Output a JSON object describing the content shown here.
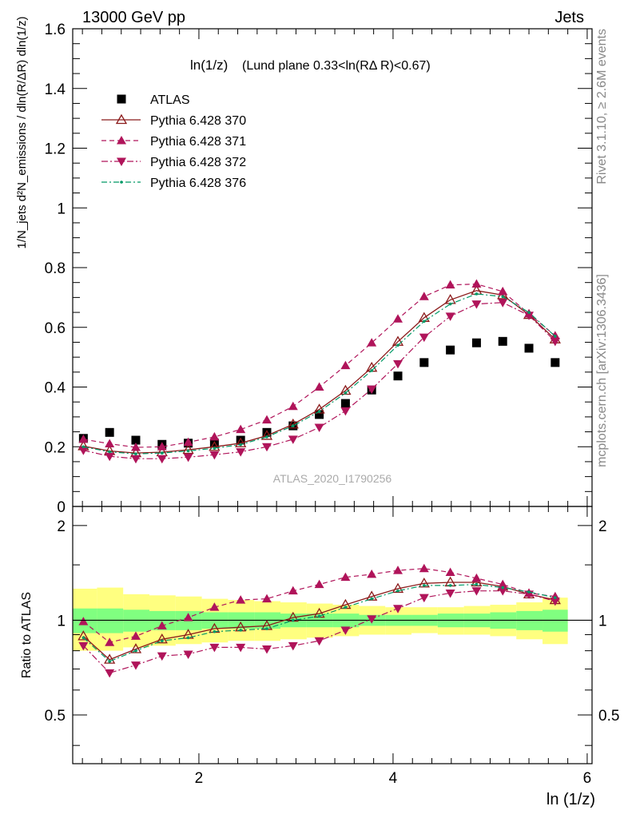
{
  "header": {
    "energy_label": "13000 GeV pp",
    "category_label": "Jets",
    "side_label_top": "Rivet 3.1.10, ≥ 2.6M events",
    "side_label_bottom": "mcplots.cern.ch [arXiv:1306.3436]",
    "watermark": "ATLAS_2020_I1790256"
  },
  "chart_data": [
    {
      "type": "scatter",
      "panel": "main",
      "title_part1": "ln(1/z)",
      "title_part2": "(Lund plane 0.33<ln(RΔ R)<0.67)",
      "xlabel": "ln (1/z)",
      "ylabel": "1/N_jets d²N_emissions / dln(R/ΔR) dln(1/z)",
      "xlim": [
        0.7,
        6.05
      ],
      "ylim": [
        0,
        1.6
      ],
      "yticks": [
        0,
        0.2,
        0.4,
        0.6,
        0.8,
        1,
        1.2,
        1.4,
        1.6
      ],
      "ytick_labels": [
        "0",
        "0.2",
        "0.4",
        "0.6",
        "0.8",
        "1",
        "1.2",
        "1.4",
        "1.6"
      ],
      "xticks": [
        2,
        4,
        6
      ],
      "xtick_labels": [
        "2",
        "4",
        "6"
      ],
      "legend_position": "top-left",
      "x": [
        0.81,
        1.08,
        1.35,
        1.62,
        1.89,
        2.16,
        2.43,
        2.7,
        2.97,
        3.24,
        3.51,
        3.78,
        4.05,
        4.32,
        4.59,
        4.86,
        5.13,
        5.4,
        5.67
      ],
      "series": [
        {
          "name": "ATLAS",
          "style": "square",
          "color": "#000000",
          "values": [
            0.228,
            0.248,
            0.222,
            0.208,
            0.212,
            0.212,
            0.222,
            0.248,
            0.27,
            0.308,
            0.345,
            0.39,
            0.437,
            0.482,
            0.524,
            0.548,
            0.553,
            0.53,
            0.482
          ]
        },
        {
          "name": "Pythia 6.428 370",
          "style": "open-triangle-up",
          "line": "solid",
          "color": "#8b1a1a",
          "values": [
            0.202,
            0.186,
            0.179,
            0.182,
            0.19,
            0.2,
            0.212,
            0.237,
            0.275,
            0.325,
            0.388,
            0.465,
            0.552,
            0.632,
            0.692,
            0.723,
            0.708,
            0.642,
            0.56
          ]
        },
        {
          "name": "Pythia 6.428 371",
          "style": "filled-triangle-up",
          "line": "dashed",
          "color": "#b0145a",
          "values": [
            0.225,
            0.21,
            0.198,
            0.2,
            0.215,
            0.233,
            0.258,
            0.29,
            0.335,
            0.4,
            0.472,
            0.548,
            0.628,
            0.703,
            0.742,
            0.745,
            0.72,
            0.645,
            0.572
          ]
        },
        {
          "name": "Pythia 6.428 372",
          "style": "filled-triangle-down",
          "line": "dash-dot",
          "color": "#b0145a",
          "values": [
            0.188,
            0.168,
            0.16,
            0.16,
            0.165,
            0.173,
            0.183,
            0.2,
            0.225,
            0.265,
            0.32,
            0.393,
            0.478,
            0.567,
            0.637,
            0.678,
            0.683,
            0.64,
            0.553
          ]
        },
        {
          "name": "Pythia 6.428 376",
          "style": "dot-triangle",
          "line": "dash-dot-green",
          "color": "#009966",
          "values": [
            0.2,
            0.183,
            0.176,
            0.179,
            0.186,
            0.195,
            0.207,
            0.233,
            0.27,
            0.318,
            0.38,
            0.455,
            0.54,
            0.62,
            0.678,
            0.712,
            0.703,
            0.65,
            0.57
          ]
        }
      ]
    },
    {
      "type": "line",
      "panel": "ratio",
      "ylabel": "Ratio to ATLAS",
      "ylim": [
        0.35,
        2.3
      ],
      "yticks": [
        0.5,
        1,
        2
      ],
      "ytick_labels": [
        "0.5",
        "1",
        "2"
      ],
      "reference_line": 1,
      "x": [
        0.81,
        1.08,
        1.35,
        1.62,
        1.89,
        2.16,
        2.43,
        2.7,
        2.97,
        3.24,
        3.51,
        3.78,
        4.05,
        4.32,
        4.59,
        4.86,
        5.13,
        5.4,
        5.67
      ],
      "bin_edges": [
        0.7,
        0.95,
        1.22,
        1.49,
        1.76,
        2.03,
        2.3,
        2.57,
        2.84,
        3.11,
        3.38,
        3.65,
        3.92,
        4.19,
        4.46,
        4.73,
        5.0,
        5.27,
        5.54,
        5.8
      ],
      "bands": {
        "yellow": {
          "color": "#ffff80",
          "low": [
            0.8,
            0.8,
            0.82,
            0.83,
            0.84,
            0.85,
            0.86,
            0.86,
            0.87,
            0.88,
            0.89,
            0.9,
            0.9,
            0.91,
            0.9,
            0.9,
            0.89,
            0.87,
            0.84
          ],
          "high": [
            1.26,
            1.27,
            1.21,
            1.2,
            1.19,
            1.17,
            1.16,
            1.15,
            1.14,
            1.13,
            1.12,
            1.11,
            1.1,
            1.1,
            1.1,
            1.11,
            1.12,
            1.14,
            1.18
          ]
        },
        "green": {
          "color": "#80ff80",
          "low": [
            0.91,
            0.91,
            0.92,
            0.93,
            0.93,
            0.94,
            0.94,
            0.94,
            0.95,
            0.95,
            0.95,
            0.96,
            0.96,
            0.96,
            0.95,
            0.95,
            0.94,
            0.93,
            0.92
          ],
          "high": [
            1.09,
            1.09,
            1.08,
            1.07,
            1.07,
            1.06,
            1.06,
            1.06,
            1.05,
            1.05,
            1.05,
            1.04,
            1.04,
            1.04,
            1.05,
            1.05,
            1.06,
            1.07,
            1.08
          ]
        }
      },
      "series": [
        {
          "name": "Pythia 6.428 370",
          "style": "open-triangle-up",
          "line": "solid",
          "color": "#8b1a1a",
          "values": [
            0.89,
            0.75,
            0.81,
            0.87,
            0.9,
            0.94,
            0.95,
            0.96,
            1.02,
            1.05,
            1.12,
            1.19,
            1.26,
            1.31,
            1.32,
            1.32,
            1.28,
            1.21,
            1.16
          ]
        },
        {
          "name": "Pythia 6.428 371",
          "style": "filled-triangle-up",
          "line": "dashed",
          "color": "#b0145a",
          "values": [
            0.99,
            0.85,
            0.89,
            0.96,
            1.02,
            1.1,
            1.16,
            1.17,
            1.24,
            1.3,
            1.37,
            1.4,
            1.44,
            1.46,
            1.42,
            1.36,
            1.3,
            1.22,
            1.19
          ]
        },
        {
          "name": "Pythia 6.428 372",
          "style": "filled-triangle-down",
          "line": "dash-dot",
          "color": "#b0145a",
          "values": [
            0.83,
            0.68,
            0.72,
            0.77,
            0.78,
            0.82,
            0.82,
            0.81,
            0.83,
            0.86,
            0.93,
            1.01,
            1.09,
            1.18,
            1.22,
            1.24,
            1.24,
            1.21,
            1.15
          ]
        },
        {
          "name": "Pythia 6.428 376",
          "style": "dot-triangle",
          "line": "dash-dot-green",
          "color": "#009966",
          "values": [
            0.88,
            0.74,
            0.8,
            0.86,
            0.88,
            0.92,
            0.93,
            0.94,
            1.0,
            1.03,
            1.1,
            1.17,
            1.24,
            1.29,
            1.29,
            1.3,
            1.27,
            1.23,
            1.18
          ]
        }
      ]
    }
  ]
}
